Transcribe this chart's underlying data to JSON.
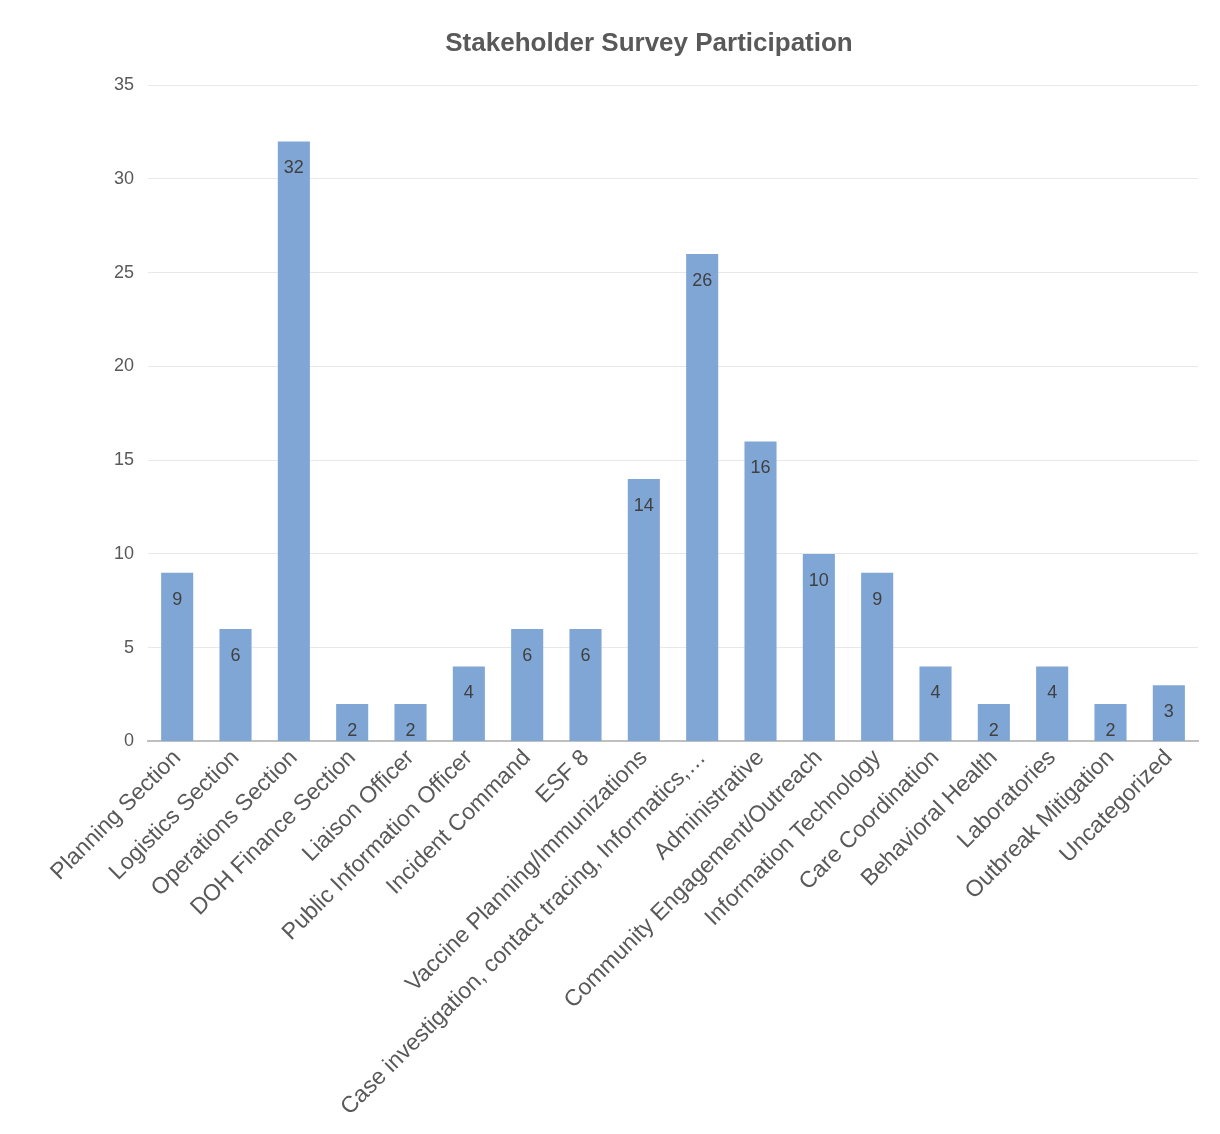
{
  "chart_data": {
    "type": "bar",
    "title": "Stakeholder Survey Participation",
    "categories": [
      "Planning Section",
      "Logistics Section",
      "Operations Section",
      "DOH Finance Section",
      "Liaison Officer",
      "Public Information Officer",
      "Incident Command",
      "ESF 8",
      "Vaccine Planning/Immunizations",
      "Case investigation, contact tracing, Informatics,…",
      "Administrative",
      "Community Engagement/Outreach",
      "Information Technology",
      "Care Coordination",
      "Behavioral Health",
      "Laboratories",
      "Outbreak Mitigation",
      "Uncategorized"
    ],
    "values": [
      9,
      6,
      32,
      2,
      2,
      4,
      6,
      6,
      14,
      26,
      16,
      10,
      9,
      4,
      2,
      4,
      2,
      3
    ],
    "color": "#7fa6d4",
    "ylim": [
      0,
      35
    ],
    "yticks": [
      0,
      5,
      10,
      15,
      20,
      25,
      30,
      35
    ],
    "grid": "y",
    "legend": false,
    "data_labels": true
  }
}
